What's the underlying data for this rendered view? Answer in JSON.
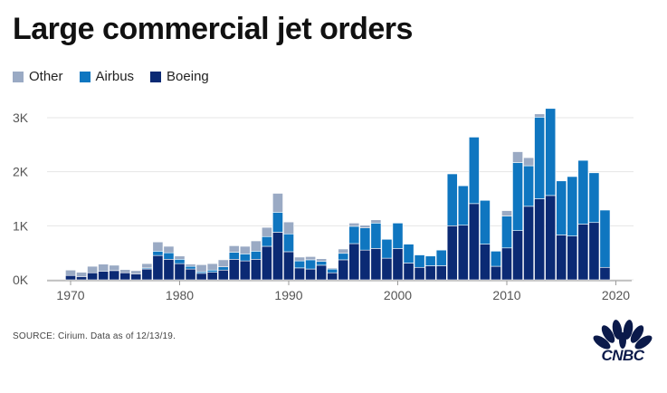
{
  "title": "Large commercial jet orders",
  "legend": [
    {
      "name": "Other",
      "color": "#9aaac4"
    },
    {
      "name": "Airbus",
      "color": "#0f76c0"
    },
    {
      "name": "Boeing",
      "color": "#0b2a74"
    }
  ],
  "source": "SOURCE: Cirium. Data as of 12/13/19.",
  "logo_text": "CNBC",
  "chart_data": {
    "type": "bar",
    "stacked": true,
    "title": "Large commercial jet orders",
    "xlabel": "",
    "ylabel": "",
    "ylim": [
      0,
      3200
    ],
    "y_ticks": [
      {
        "value": 0,
        "label": "0K"
      },
      {
        "value": 1000,
        "label": "1K"
      },
      {
        "value": 2000,
        "label": "2K"
      },
      {
        "value": 3000,
        "label": "3K"
      }
    ],
    "x_ticks": [
      {
        "value": 1970,
        "label": "1970"
      },
      {
        "value": 1980,
        "label": "1980"
      },
      {
        "value": 1990,
        "label": "1990"
      },
      {
        "value": 2000,
        "label": "2000"
      },
      {
        "value": 2010,
        "label": "2010"
      },
      {
        "value": 2020,
        "label": "2020"
      }
    ],
    "categories": [
      1970,
      1971,
      1972,
      1973,
      1974,
      1975,
      1976,
      1977,
      1978,
      1979,
      1980,
      1981,
      1982,
      1983,
      1984,
      1985,
      1986,
      1987,
      1988,
      1989,
      1990,
      1991,
      1992,
      1993,
      1994,
      1995,
      1996,
      1997,
      1998,
      1999,
      2000,
      2001,
      2002,
      2003,
      2004,
      2005,
      2006,
      2007,
      2008,
      2009,
      2010,
      2011,
      2012,
      2013,
      2014,
      2015,
      2016,
      2017,
      2018,
      2019
    ],
    "series": [
      {
        "name": "Boeing",
        "color": "#0b2a74",
        "values": [
          80,
          60,
          130,
          160,
          170,
          130,
          110,
          200,
          450,
          380,
          300,
          200,
          120,
          140,
          180,
          380,
          350,
          380,
          620,
          880,
          520,
          220,
          200,
          270,
          130,
          370,
          670,
          550,
          580,
          400,
          580,
          310,
          230,
          260,
          260,
          1000,
          1010,
          1410,
          660,
          250,
          590,
          910,
          1360,
          1500,
          1560,
          830,
          810,
          1030,
          1060,
          230
        ]
      },
      {
        "name": "Airbus",
        "color": "#0f76c0",
        "values": [
          0,
          0,
          0,
          0,
          0,
          0,
          0,
          20,
          80,
          120,
          80,
          50,
          30,
          40,
          60,
          130,
          130,
          150,
          180,
          370,
          330,
          130,
          170,
          70,
          70,
          120,
          320,
          410,
          470,
          350,
          470,
          350,
          230,
          180,
          290,
          960,
          730,
          1230,
          810,
          280,
          590,
          1260,
          750,
          1510,
          1610,
          1000,
          1100,
          1180,
          920,
          1060
        ]
      },
      {
        "name": "Other",
        "color": "#9aaac4",
        "values": [
          100,
          80,
          120,
          130,
          100,
          60,
          60,
          80,
          170,
          120,
          60,
          40,
          130,
          120,
          130,
          120,
          140,
          190,
          170,
          350,
          220,
          70,
          60,
          50,
          20,
          80,
          60,
          50,
          60,
          10,
          0,
          0,
          0,
          0,
          0,
          0,
          0,
          0,
          0,
          0,
          100,
          200,
          150,
          60,
          0,
          0,
          0,
          0,
          0,
          0
        ]
      }
    ]
  }
}
